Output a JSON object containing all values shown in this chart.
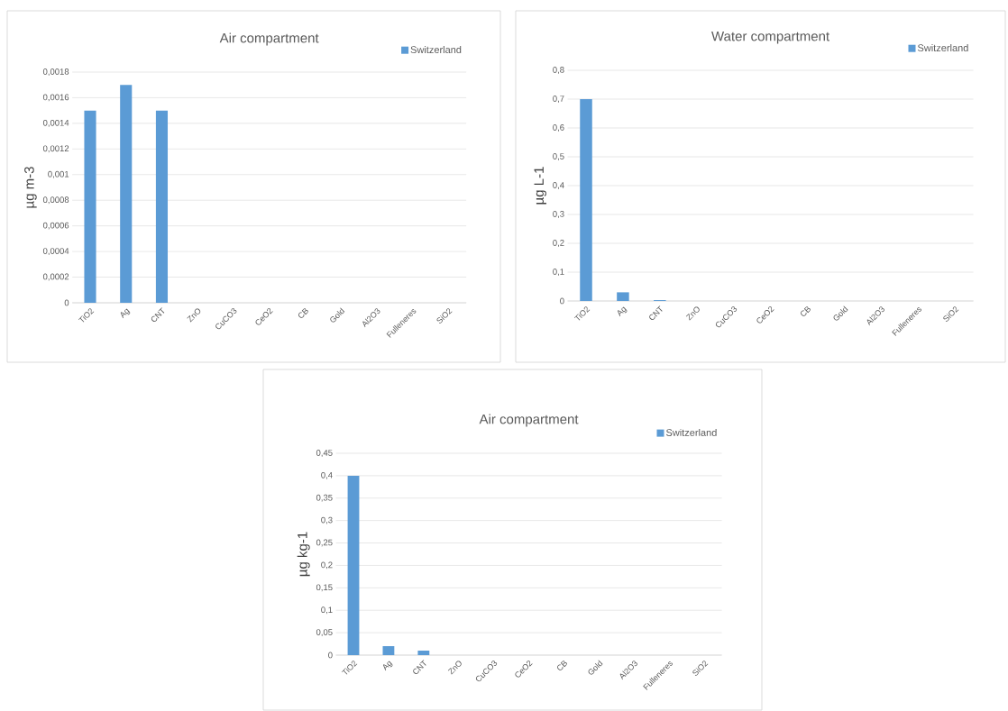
{
  "chart_data": [
    {
      "type": "bar",
      "title": "Air compartment",
      "ylabel": "µg m-3",
      "categories": [
        "TiO2",
        "Ag",
        "CNT",
        "ZnO",
        "CuCO3",
        "CeO2",
        "CB",
        "Gold",
        "Al2O3",
        "Fulleneres",
        "SiO2"
      ],
      "series": [
        {
          "name": "Switzerland",
          "color": "#5b9bd5",
          "values": [
            0.0015,
            0.0017,
            0.0015,
            0,
            0,
            0,
            0,
            0,
            0,
            0,
            0
          ]
        }
      ],
      "ylim": [
        0,
        0.0018
      ],
      "yticks": [
        0,
        {
          "value": 0.0002,
          "label": "0,0002"
        },
        {
          "value": 0.0004,
          "label": "0,0004"
        },
        {
          "value": 0.0006,
          "label": "0,0006"
        },
        {
          "value": 0.0008,
          "label": "0,0008"
        },
        {
          "value": 0.001,
          "label": "0,001"
        },
        {
          "value": 0.0012,
          "label": "0,0012"
        },
        {
          "value": 0.0014,
          "label": "0,0014"
        },
        {
          "value": 0.0016,
          "label": "0,0016"
        },
        {
          "value": 0.0018,
          "label": "0,0018"
        }
      ],
      "grid": "y",
      "legend": "top right"
    },
    {
      "type": "bar",
      "title": "Water compartment",
      "ylabel": "µg L-1",
      "categories": [
        "TiO2",
        "Ag",
        "CNT",
        "ZnO",
        "CuCO3",
        "CeO2",
        "CB",
        "Gold",
        "Al2O3",
        "Fulleneres",
        "SiO2"
      ],
      "series": [
        {
          "name": "Switzerland",
          "color": "#5b9bd5",
          "values": [
            0.7,
            0.03,
            0.003,
            0,
            0,
            0,
            0,
            0,
            0,
            0,
            0
          ]
        }
      ],
      "ylim": [
        0,
        0.8
      ],
      "yticks": [
        0,
        {
          "value": 0.1,
          "label": "0,1"
        },
        {
          "value": 0.2,
          "label": "0,2"
        },
        {
          "value": 0.3,
          "label": "0,3"
        },
        {
          "value": 0.4,
          "label": "0,4"
        },
        {
          "value": 0.5,
          "label": "0,5"
        },
        {
          "value": 0.6,
          "label": "0,6"
        },
        {
          "value": 0.7,
          "label": "0,7"
        },
        {
          "value": 0.8,
          "label": "0,8"
        }
      ],
      "grid": "y",
      "legend": "top right"
    },
    {
      "type": "bar",
      "title": "Air compartment",
      "ylabel": "µg kg-1",
      "categories": [
        "TiO2",
        "Ag",
        "CNT",
        "ZnO",
        "CuCO3",
        "CeO2",
        "CB",
        "Gold",
        "Al2O3",
        "Fulleneres",
        "SiO2"
      ],
      "series": [
        {
          "name": "Switzerland",
          "color": "#5b9bd5",
          "values": [
            0.4,
            0.02,
            0.01,
            0,
            0,
            0,
            0,
            0,
            0,
            0,
            0
          ]
        }
      ],
      "ylim": [
        0,
        0.45
      ],
      "yticks": [
        0,
        {
          "value": 0.05,
          "label": "0,05"
        },
        {
          "value": 0.1,
          "label": "0,1"
        },
        {
          "value": 0.15,
          "label": "0,15"
        },
        {
          "value": 0.2,
          "label": "0,2"
        },
        {
          "value": 0.25,
          "label": "0,25"
        },
        {
          "value": 0.3,
          "label": "0,3"
        },
        {
          "value": 0.35,
          "label": "0,35"
        },
        {
          "value": 0.4,
          "label": "0,4"
        },
        {
          "value": 0.45,
          "label": "0,45"
        }
      ],
      "grid": "y",
      "legend": "top right"
    }
  ]
}
